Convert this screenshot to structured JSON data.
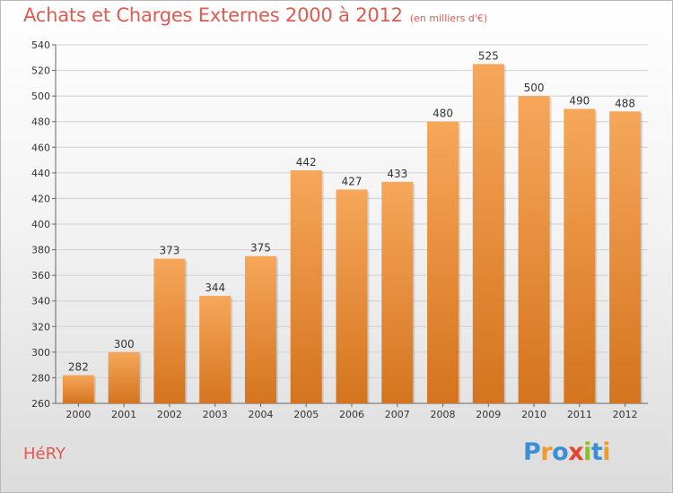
{
  "header": {
    "title": "Achats et Charges Externes 2000 à 2012",
    "subtitle": "(en milliers d'€)"
  },
  "footer": {
    "commune": "HéRY",
    "logo_text": "Proxiti",
    "logo_letters": [
      {
        "ch": "P",
        "color": "#3a8fd6"
      },
      {
        "ch": "r",
        "color": "#f29a2e"
      },
      {
        "ch": "o",
        "color": "#3a8fd6"
      },
      {
        "ch": "x",
        "color": "#e8432f"
      },
      {
        "ch": "i",
        "color": "#8bbd2d"
      },
      {
        "ch": "t",
        "color": "#3a8fd6"
      },
      {
        "ch": "i",
        "color": "#f29a2e"
      }
    ]
  },
  "colors": {
    "title": "#e05a50",
    "bar_top": "#f6a75a",
    "bar_bottom": "#d4741e",
    "grid": "#d0d0d0"
  },
  "chart_data": {
    "type": "bar",
    "title": "Achats et Charges Externes 2000 à 2012",
    "subtitle": "(en milliers d'€)",
    "categories": [
      "2000",
      "2001",
      "2002",
      "2003",
      "2004",
      "2005",
      "2006",
      "2007",
      "2008",
      "2009",
      "2010",
      "2011",
      "2012"
    ],
    "values": [
      282,
      300,
      373,
      344,
      375,
      442,
      427,
      433,
      480,
      525,
      500,
      490,
      488
    ],
    "ylim": [
      260,
      540
    ],
    "yticks": [
      260,
      280,
      300,
      320,
      340,
      360,
      380,
      400,
      420,
      440,
      460,
      480,
      500,
      520,
      540
    ],
    "xlabel": "",
    "ylabel": "",
    "grid": true,
    "legend": "none"
  }
}
